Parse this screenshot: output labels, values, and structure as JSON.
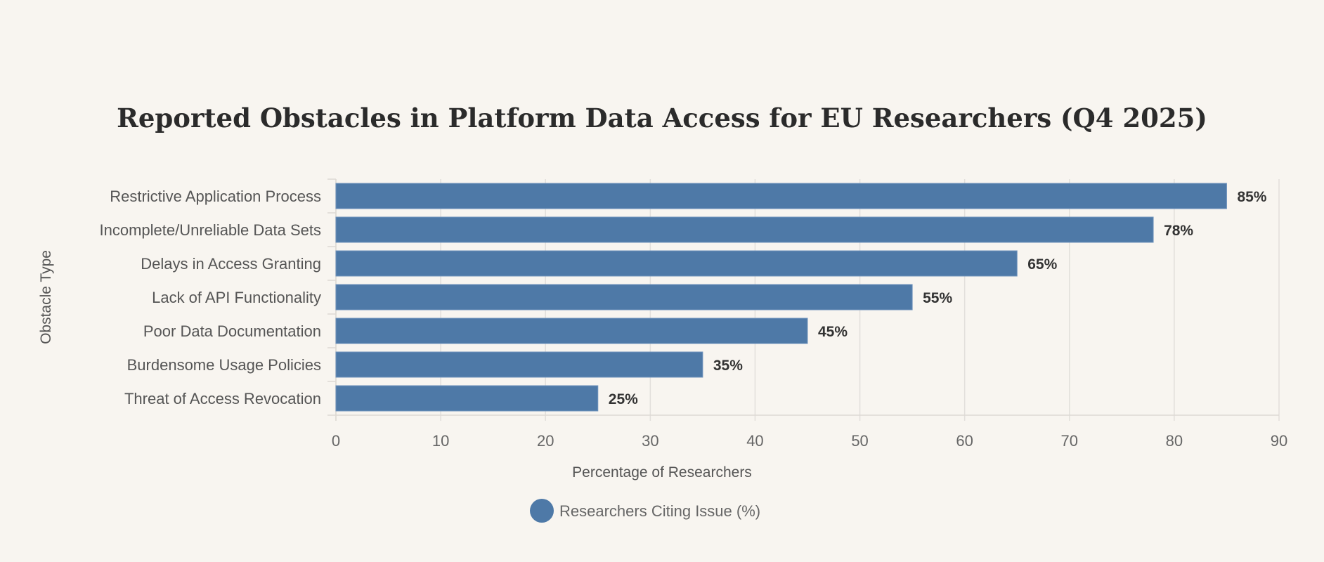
{
  "chart_data": {
    "type": "bar",
    "orientation": "horizontal",
    "title": "Reported Obstacles in Platform Data Access for EU Researchers (Q4 2025)",
    "xlabel": "Percentage of Researchers",
    "ylabel": "Obstacle Type",
    "xlim": [
      0,
      90
    ],
    "xticks": [
      "0",
      "10",
      "20",
      "30",
      "40",
      "50",
      "60",
      "70",
      "80",
      "90"
    ],
    "grid": true,
    "categories": [
      "Restrictive Application Process",
      "Incomplete/Unreliable Data Sets",
      "Delays in Access Granting",
      "Lack of API Functionality",
      "Poor Data Documentation",
      "Burdensome Usage Policies",
      "Threat of Access Revocation"
    ],
    "series": [
      {
        "name": "Researchers Citing Issue (%)",
        "values": [
          85,
          78,
          65,
          55,
          45,
          35,
          25
        ],
        "labels": [
          "85%",
          "78%",
          "65%",
          "55%",
          "45%",
          "35%",
          "25%"
        ],
        "color": "#4e79a7"
      }
    ],
    "legend_position": "bottom-center"
  }
}
